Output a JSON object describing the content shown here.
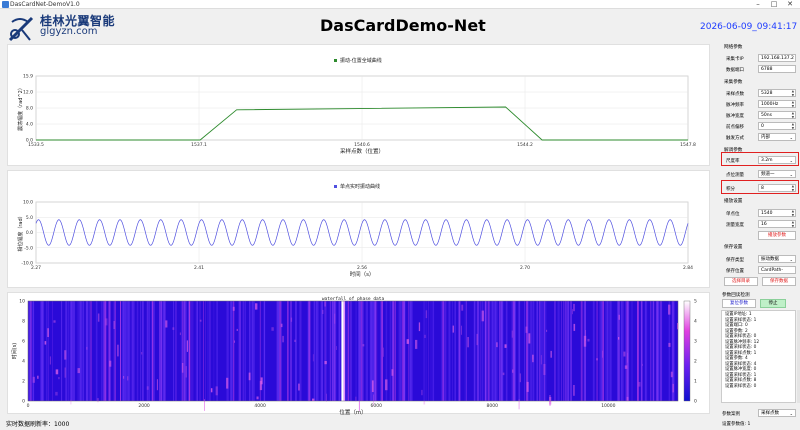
{
  "window": {
    "title": "DasCardNet-DemoV1.0"
  },
  "logo": {
    "cn": "桂林光翼智能",
    "en": "glgyzn.com"
  },
  "header": {
    "title": "DasCardDemo-Net",
    "datetime": "2026-06-09_09:41:17"
  },
  "chart_data": [
    {
      "type": "line",
      "title": "振动-位置全域曲线",
      "series": [
        {
          "name": "振动-位置全域曲线",
          "color": "#2e8b2e",
          "x": [
            1533.5,
            1537.1,
            1537.9,
            1543.8,
            1544.6,
            1547.8
          ],
          "y": [
            0,
            0,
            7.5,
            8.2,
            0,
            0
          ]
        }
      ],
      "xlabel": "采样点数（位置）",
      "ylabel": "震荡幅度（rad^2）",
      "xticks": [
        "1533.5",
        "1537.1",
        "1540.6",
        "1544.2",
        "1547.8"
      ],
      "yticks": [
        "15.9",
        "12.0",
        "8.0",
        "4.0",
        "0.0"
      ],
      "xlim": [
        1533.5,
        1547.8
      ],
      "ylim": [
        0,
        15.9
      ],
      "grid": true
    },
    {
      "type": "line",
      "title": "单点实时振动曲线",
      "series": [
        {
          "name": "单点实时振动曲线",
          "color": "#5050e0",
          "x_start": 2.27,
          "x_end": 2.84,
          "amplitude": 4.2,
          "cycles": 32
        }
      ],
      "xlabel": "时间（s）",
      "ylabel": "相位幅度（rad）",
      "xticks": [
        "2.27",
        "2.41",
        "2.56",
        "2.70",
        "2.84"
      ],
      "yticks": [
        "10.0",
        "5.0",
        "0.0",
        "-5.0",
        "-10.0"
      ],
      "xlim": [
        2.27,
        2.84
      ],
      "ylim": [
        -10,
        10
      ],
      "grid": true
    },
    {
      "type": "heatmap",
      "title": "waterfall of phase data",
      "xlabel": "位置（m）",
      "ylabel": "时间(s)",
      "xticks": [
        "0",
        "2000",
        "4000",
        "6000",
        "8000",
        "10000"
      ],
      "yticks": [
        "10",
        "8",
        "6",
        "4",
        "2",
        "0"
      ],
      "colorbar_ticks": [
        "5",
        "4",
        "3",
        "2",
        "1",
        "0"
      ],
      "xlim": [
        0,
        11200
      ],
      "ylim": [
        0,
        10
      ],
      "colorbar_range": [
        0,
        5
      ]
    }
  ],
  "status": {
    "refresh_rate": "实时数据刷新率：1000"
  },
  "settings": {
    "comm_section": "网络参数",
    "ip_label": "采集卡IP",
    "ip_value": "192.168.137.2",
    "port_label": "数据端口",
    "port_value": "6788",
    "collect_section": "采集参数",
    "points_label": "采样点数",
    "points_value": "5328",
    "pulse_freq_label": "脉冲频率",
    "pulse_freq_value": "1000Hz",
    "pulse_width_label": "脉冲宽度",
    "pulse_width_value": "50ns",
    "offset_label": "前点偏移",
    "offset_value": "0",
    "trigger_label": "触发方式",
    "trigger_value": "内部",
    "demod_section": "解调参数",
    "gauge_label": "尺度率",
    "gauge_value": "3.2m",
    "data_type_label": "点位测量",
    "data_type_value": "频道一",
    "count_label": "积分",
    "count_value": "8",
    "display_section": "播放设置",
    "fixed_pos_label": "单点位",
    "fixed_pos_value": "1540",
    "wave_width_label": "测量宽度",
    "wave_width_value": "16",
    "apply_button": "播放参数",
    "save_section": "保存设置",
    "save_type_label": "保存类型",
    "save_type_value": "振动数据",
    "save_path_label": "保存位置",
    "save_path_value": "CardPath-Demo",
    "choose_dir_button": "选择目录",
    "save_data_button": "保存数据",
    "readback_section": "参数回读检测",
    "readback_button": "复位参数",
    "stop_button": "停止",
    "readback_lines": [
      "设置IP地址: 1",
      "设置采样状态: 1",
      "设置端口: 0",
      "设置参数: 2",
      "设置采样状态: 0",
      "设置脉冲频率: 12",
      "设置采样状态: 0",
      "设置采样点数: 1",
      "设置参数: 4",
      "设置采样状态: 4",
      "设置脉冲宽度: 0",
      "设置采样状态: 1",
      "设置采样点数: 8",
      "设置采样状态: 0"
    ],
    "mode_label": "参数案例",
    "mode_value": "采样点数",
    "status_label": "设置参数值: 1"
  }
}
